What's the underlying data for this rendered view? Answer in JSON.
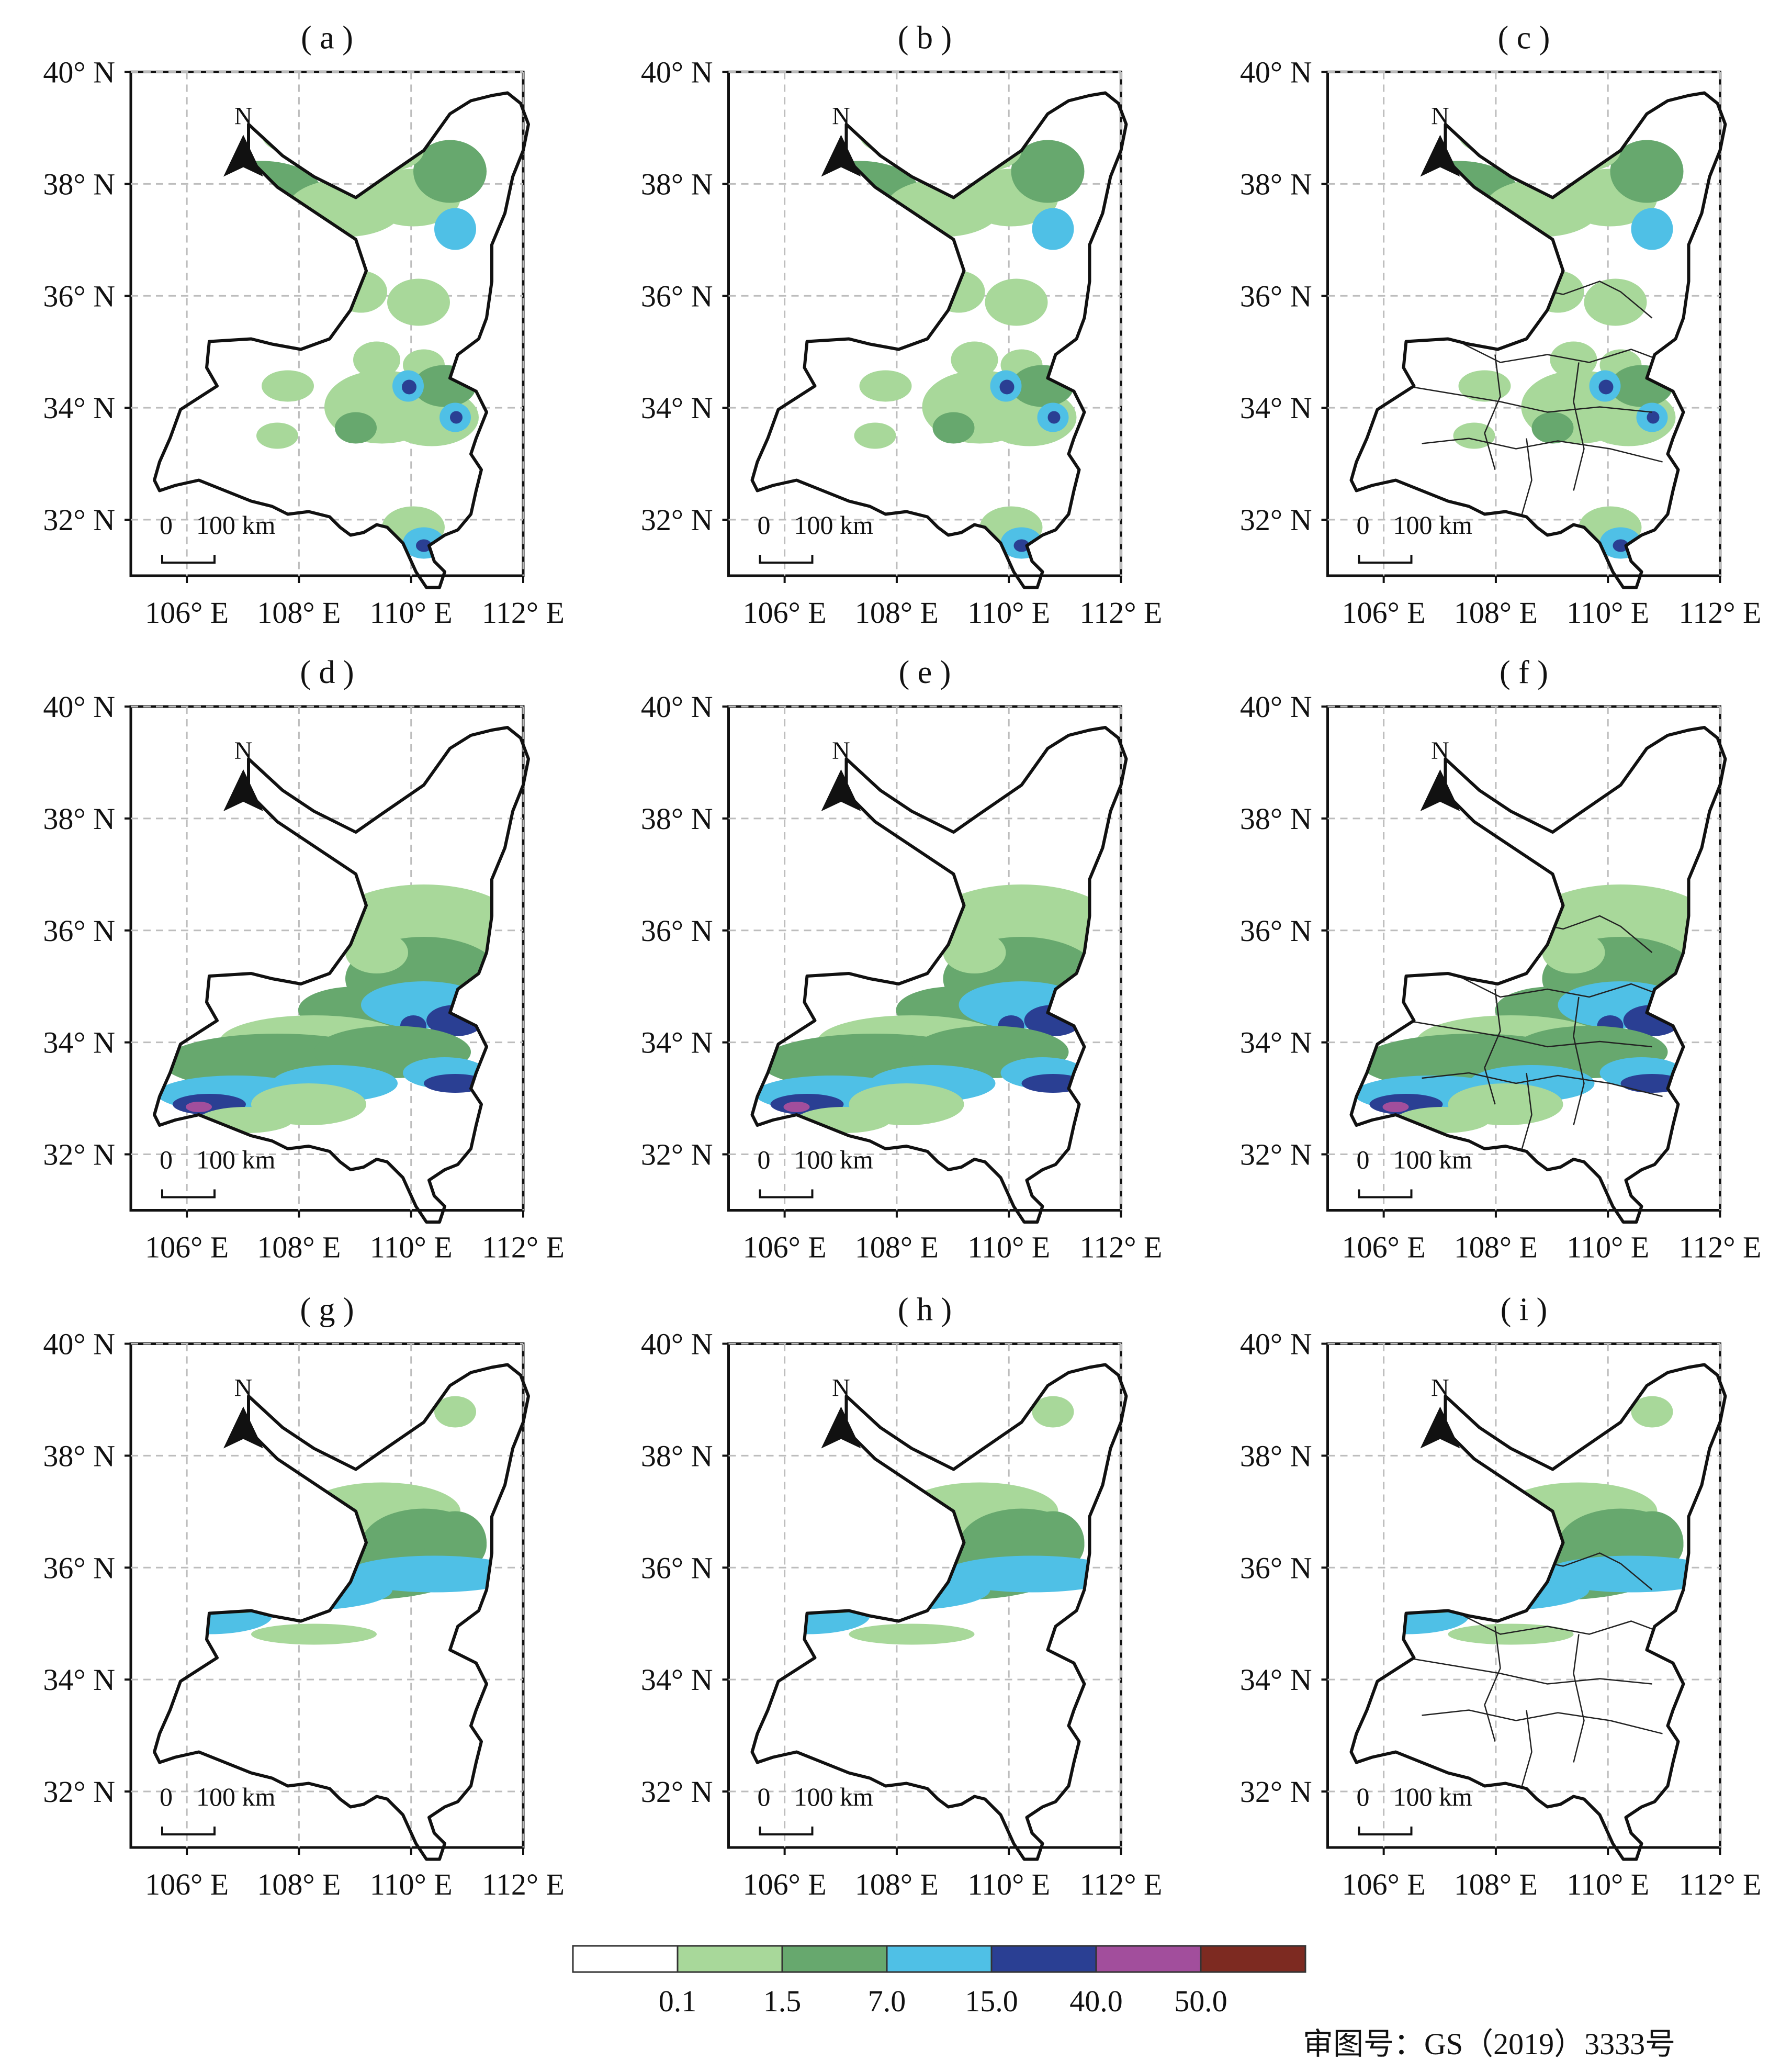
{
  "panels": [
    {
      "label": "( a )",
      "province_variant": "plain",
      "pattern": "north"
    },
    {
      "label": "( b )",
      "province_variant": "plain",
      "pattern": "north"
    },
    {
      "label": "( c )",
      "province_variant": "admin",
      "pattern": "north"
    },
    {
      "label": "( d )",
      "province_variant": "plain",
      "pattern": "central"
    },
    {
      "label": "( e )",
      "province_variant": "plain",
      "pattern": "central"
    },
    {
      "label": "( f )",
      "province_variant": "admin",
      "pattern": "central"
    },
    {
      "label": "( g )",
      "province_variant": "plain",
      "pattern": "band"
    },
    {
      "label": "( h )",
      "province_variant": "plain",
      "pattern": "band"
    },
    {
      "label": "( i )",
      "province_variant": "admin",
      "pattern": "band"
    }
  ],
  "axes": {
    "lat_ticks": [
      "40° N",
      "38° N",
      "36° N",
      "34° N",
      "32° N"
    ],
    "lon_ticks": [
      "106° E",
      "108° E",
      "110° E",
      "112° E"
    ],
    "lat_range": [
      31,
      40
    ],
    "lon_range": [
      105,
      112
    ]
  },
  "north_label": "N",
  "scale_bar": {
    "zero": "0",
    "dist": "100 km"
  },
  "legend": {
    "colors": [
      "#ffffff",
      "#a8d89a",
      "#67a86e",
      "#4fc0e6",
      "#2a3f93",
      "#a24e9c",
      "#7d2a21"
    ],
    "labels": [
      "0.1",
      "1.5",
      "7.0",
      "15.0",
      "40.0",
      "50.0"
    ]
  },
  "approval": "审图号：GS（2019）3333号"
}
